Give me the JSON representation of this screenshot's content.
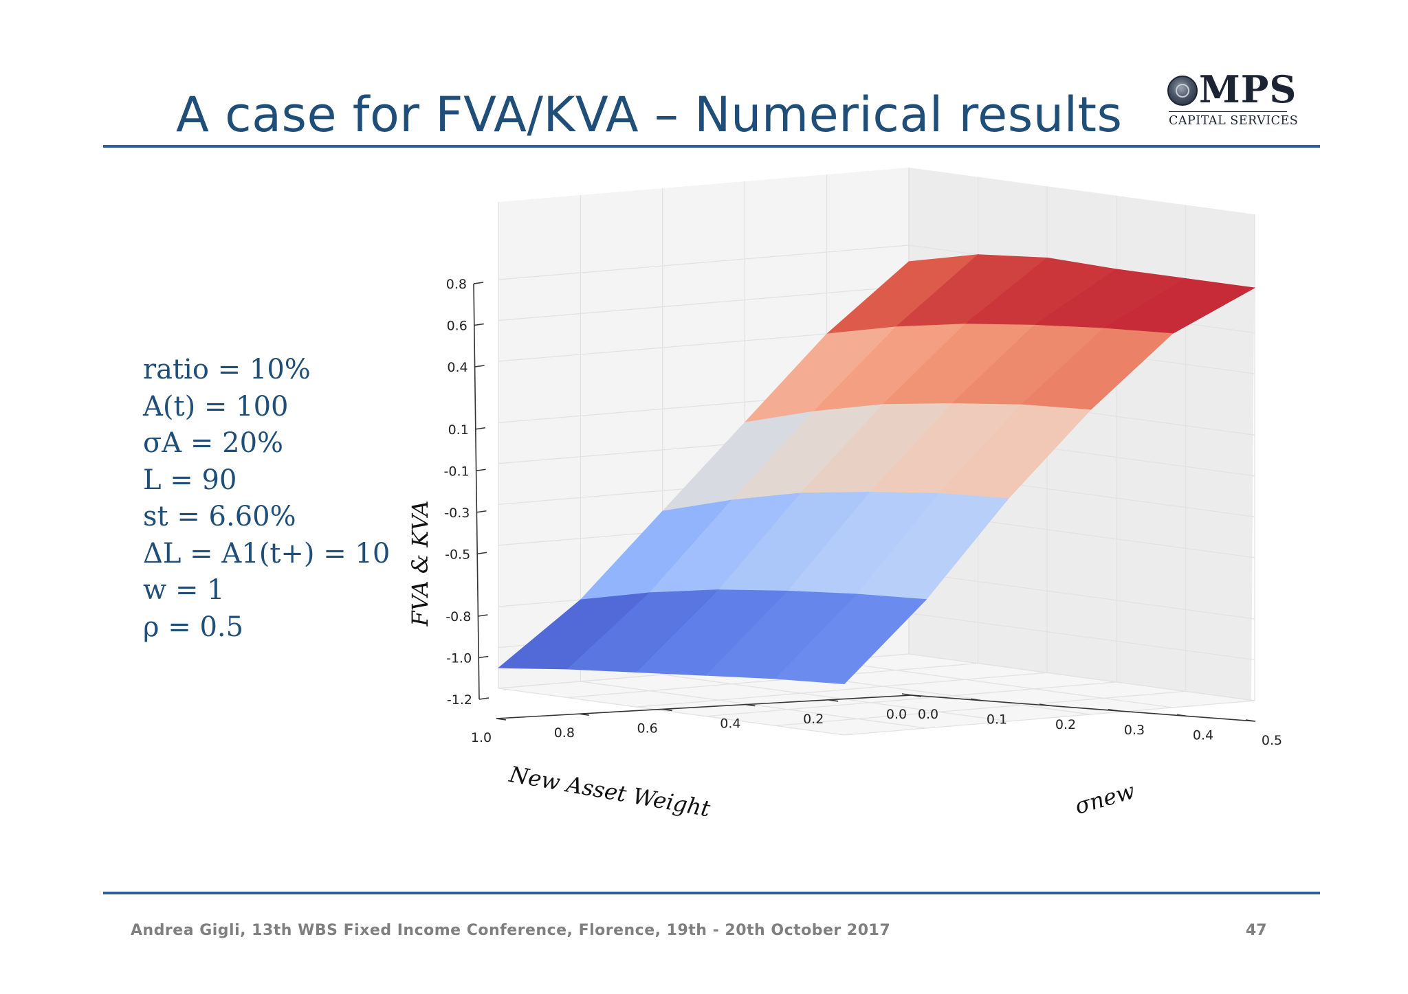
{
  "slide": {
    "title": "A case for FVA/KVA – Numerical results",
    "footer": "Andrea Gigli, 13th WBS Fixed Income Conference, Florence, 19th - 20th October 2017",
    "page_number": "47"
  },
  "logo": {
    "main": "MPS",
    "sub": "CAPITAL SERVICES"
  },
  "parameters": [
    "ratio = 10%",
    "A(t) = 100",
    "σA = 20%",
    "L = 90",
    "st = 6.60%",
    "ΔL = A1(t+) = 10",
    "w = 1",
    "ρ = 0.5"
  ],
  "colors": {
    "title": "#1f4e79",
    "rule": "#2e5f9a",
    "colormap": "coolwarm"
  },
  "chart_data": {
    "type": "surface3d",
    "zlabel": "FVA & KVA",
    "xlabel": "New Asset Weight",
    "ylabel": "σnew",
    "x": [
      1.0,
      0.8,
      0.6,
      0.4,
      0.2,
      0.0
    ],
    "y": [
      0.0,
      0.1,
      0.2,
      0.3,
      0.4,
      0.5
    ],
    "z_ticks": [
      "0.8",
      "0.6",
      "0.4",
      "0.1",
      "-0.1",
      "-0.3",
      "-0.5",
      "-0.8",
      "-1.0",
      "-1.2"
    ],
    "x_ticks": [
      "1.0",
      "0.8",
      "0.6",
      "0.4",
      "0.2",
      "0.0"
    ],
    "y_ticks": [
      "0.0",
      "0.1",
      "0.2",
      "0.3",
      "0.4",
      "0.5"
    ],
    "zlim": [
      -1.2,
      0.8
    ],
    "z": [
      [
        -1.1,
        -1.06,
        -1.03,
        -1.0,
        -0.97,
        -0.95
      ],
      [
        -0.8,
        -0.72,
        -0.66,
        -0.62,
        -0.59,
        -0.57
      ],
      [
        -0.4,
        -0.3,
        -0.22,
        -0.17,
        -0.13,
        -0.11
      ],
      [
        0.0,
        0.1,
        0.18,
        0.23,
        0.27,
        0.29
      ],
      [
        0.4,
        0.48,
        0.54,
        0.58,
        0.61,
        0.63
      ],
      [
        0.72,
        0.8,
        0.83,
        0.82,
        0.82,
        0.82
      ]
    ],
    "grid": true
  }
}
